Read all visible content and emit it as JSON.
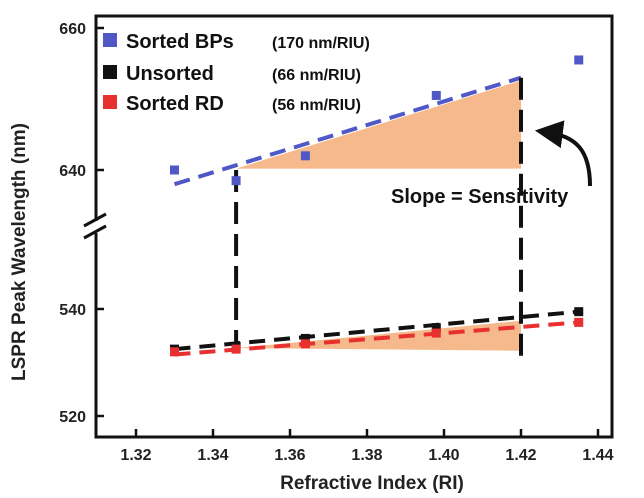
{
  "chart_data": {
    "type": "scatter",
    "xlabel": "Refractive Index (RI)",
    "ylabel": "LSPR Peak Wavelength (nm)",
    "xlim": [
      1.32,
      1.445
    ],
    "x_ticks": [
      "1.32",
      "1.34",
      "1.36",
      "1.38",
      "1.40",
      "1.42",
      "1.44"
    ],
    "y_ticks": [
      "520",
      "540",
      "640",
      "660"
    ],
    "y_axis_break": true,
    "legend_position": "top-left",
    "series": [
      {
        "name": "Sorted BPs",
        "sensitivity_label": "(170 nm/RIU)",
        "color": "#5058c8",
        "x": [
          1.33,
          1.346,
          1.364,
          1.398,
          1.435
        ],
        "y": [
          640.0,
          638.5,
          642.0,
          650.5,
          655.5
        ],
        "fit": {
          "x": [
            1.33,
            1.42
          ],
          "y": [
            638.0,
            653.0
          ]
        }
      },
      {
        "name": "Unsorted",
        "sensitivity_label": "(66 nm/RIU)",
        "color": "#111111",
        "x": [
          1.33,
          1.346,
          1.364,
          1.398,
          1.435
        ],
        "y": [
          532.5,
          533.0,
          534.5,
          536.5,
          539.5
        ],
        "fit": {
          "x": [
            1.33,
            1.435
          ],
          "y": [
            532.5,
            539.5
          ]
        }
      },
      {
        "name": "Sorted RD",
        "sensitivity_label": "(56 nm/RIU)",
        "color": "#e83030",
        "x": [
          1.33,
          1.346,
          1.364,
          1.398,
          1.435
        ],
        "y": [
          532.0,
          532.5,
          533.5,
          535.5,
          537.5
        ],
        "fit": {
          "x": [
            1.33,
            1.435
          ],
          "y": [
            531.5,
            537.5
          ]
        }
      }
    ],
    "annotations": [
      {
        "text": "Slope = Sensitivity"
      }
    ],
    "colors": {
      "fill": "#f5b98c"
    }
  }
}
